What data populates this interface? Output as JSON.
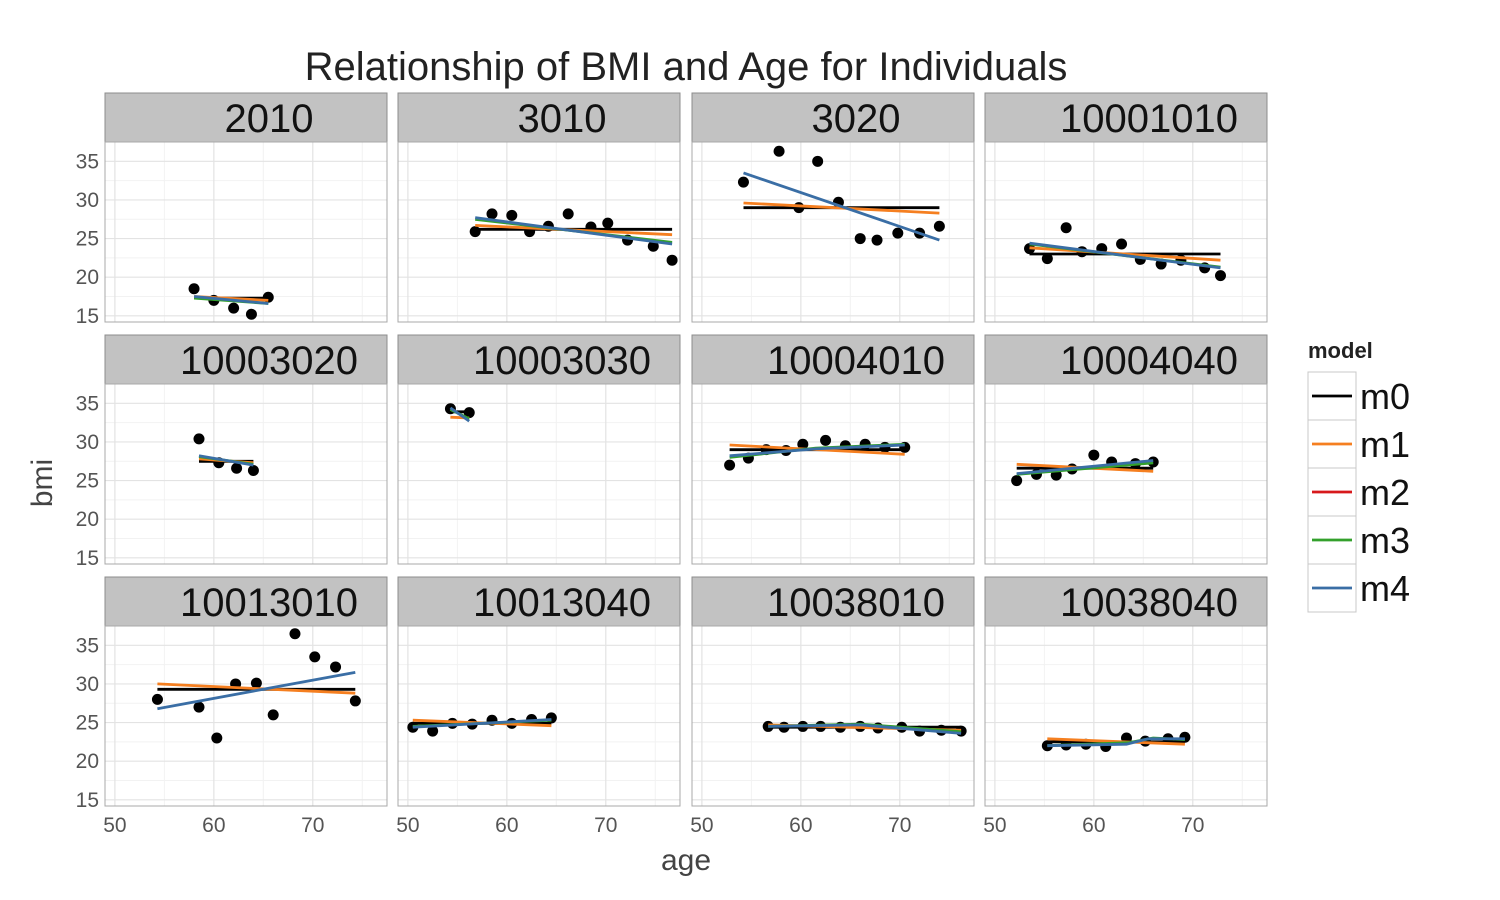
{
  "chart_data": {
    "type": "scatter",
    "title": "Relationship of BMI and Age for Individuals",
    "xlabel": "age",
    "ylabel": "bmi",
    "xlim": [
      49,
      77.5
    ],
    "ylim": [
      14.2,
      37.5
    ],
    "x_ticks": [
      50,
      60,
      70
    ],
    "y_ticks": [
      15,
      20,
      25,
      30,
      35
    ],
    "grid": true,
    "legend": {
      "title": "model",
      "position": "right",
      "entries": [
        {
          "name": "m0",
          "color": "#000000"
        },
        {
          "name": "m1",
          "color": "#F57F20"
        },
        {
          "name": "m2",
          "color": "#D7191C"
        },
        {
          "name": "m3",
          "color": "#33A02C"
        },
        {
          "name": "m4",
          "color": "#3A6EA5"
        }
      ]
    },
    "panels": [
      {
        "id": "2010",
        "points": [
          [
            58,
            18.5
          ],
          [
            60,
            17
          ],
          [
            62,
            16
          ],
          [
            63.8,
            15.2
          ],
          [
            65.5,
            17.4
          ]
        ],
        "lines": {
          "m0": [
            [
              58,
              17.3
            ],
            [
              65.5,
              17.3
            ]
          ],
          "m1": [
            [
              58,
              17.5
            ],
            [
              65.5,
              17.0
            ]
          ],
          "m3": [
            [
              58,
              17.3
            ],
            [
              65.5,
              16.6
            ]
          ],
          "m4": [
            [
              58,
              17.5
            ],
            [
              65.5,
              16.6
            ]
          ]
        }
      },
      {
        "id": "3010",
        "points": [
          [
            56.8,
            25.9
          ],
          [
            58.5,
            28.2
          ],
          [
            60.5,
            28
          ],
          [
            62.3,
            25.9
          ],
          [
            64.2,
            26.6
          ],
          [
            66.2,
            28.2
          ],
          [
            68.5,
            26.5
          ],
          [
            70.2,
            27
          ],
          [
            72.2,
            24.8
          ],
          [
            74.8,
            24
          ],
          [
            76.7,
            22.2
          ]
        ],
        "lines": {
          "m0": [
            [
              56.8,
              26.2
            ],
            [
              76.7,
              26.2
            ]
          ],
          "m1": [
            [
              56.8,
              26.7
            ],
            [
              76.7,
              25.5
            ]
          ],
          "m3": [
            [
              56.8,
              27.5
            ],
            [
              76.7,
              24.5
            ]
          ],
          "m4": [
            [
              56.8,
              27.7
            ],
            [
              76.7,
              24.3
            ]
          ]
        }
      },
      {
        "id": "3020",
        "points": [
          [
            54.2,
            32.3
          ],
          [
            57.8,
            36.3
          ],
          [
            59.8,
            29
          ],
          [
            61.7,
            35
          ],
          [
            63.8,
            29.7
          ],
          [
            66,
            25
          ],
          [
            67.7,
            24.8
          ],
          [
            69.8,
            25.7
          ],
          [
            72,
            25.7
          ],
          [
            74,
            26.6
          ]
        ],
        "lines": {
          "m0": [
            [
              54.2,
              29
            ],
            [
              74,
              29
            ]
          ],
          "m1": [
            [
              54.2,
              29.6
            ],
            [
              74,
              28.3
            ]
          ],
          "m4": [
            [
              54.2,
              33.5
            ],
            [
              74,
              24.8
            ]
          ]
        }
      },
      {
        "id": "10001010",
        "points": [
          [
            53.5,
            23.7
          ],
          [
            55.3,
            22.4
          ],
          [
            57.2,
            26.4
          ],
          [
            58.8,
            23.3
          ],
          [
            60.8,
            23.7
          ],
          [
            62.8,
            24.3
          ],
          [
            64.7,
            22.3
          ],
          [
            66.8,
            21.7
          ],
          [
            68.8,
            22.2
          ],
          [
            71.2,
            21.2
          ],
          [
            72.8,
            20.2
          ]
        ],
        "lines": {
          "m0": [
            [
              53.5,
              23
            ],
            [
              72.8,
              23
            ]
          ],
          "m1": [
            [
              53.5,
              23.8
            ],
            [
              72.8,
              22.2
            ]
          ],
          "m3": [
            [
              53.5,
              24.3
            ],
            [
              72.8,
              21.3
            ]
          ],
          "m4": [
            [
              53.5,
              24.4
            ],
            [
              72.8,
              21.2
            ]
          ]
        }
      },
      {
        "id": "10003020",
        "points": [
          [
            58.5,
            30.4
          ],
          [
            60.5,
            27.3
          ],
          [
            62.3,
            26.6
          ],
          [
            64,
            26.3
          ]
        ],
        "lines": {
          "m0": [
            [
              58.5,
              27.5
            ],
            [
              64,
              27.5
            ]
          ],
          "m1": [
            [
              58.5,
              27.8
            ],
            [
              64,
              27.3
            ]
          ],
          "m3": [
            [
              58.5,
              28.1
            ],
            [
              64,
              27.1
            ]
          ],
          "m4": [
            [
              58.5,
              28.2
            ],
            [
              64,
              27.0
            ]
          ]
        }
      },
      {
        "id": "10003030",
        "points": [
          [
            54.3,
            34.3
          ],
          [
            56.2,
            33.8
          ]
        ],
        "lines": {
          "m0": [
            [
              54.3,
              33.9
            ],
            [
              56.2,
              33.9
            ]
          ],
          "m1": [
            [
              54.3,
              33.2
            ],
            [
              56.2,
              33.1
            ]
          ],
          "m3": [
            [
              54.3,
              34.2
            ],
            [
              56.2,
              33.0
            ]
          ],
          "m4": [
            [
              54.3,
              34.4
            ],
            [
              56.2,
              32.7
            ]
          ]
        }
      },
      {
        "id": "10004010",
        "points": [
          [
            52.8,
            27
          ],
          [
            54.7,
            27.9
          ],
          [
            56.5,
            29
          ],
          [
            58.5,
            28.9
          ],
          [
            60.2,
            29.7
          ],
          [
            62.5,
            30.2
          ],
          [
            64.5,
            29.5
          ],
          [
            66.5,
            29.7
          ],
          [
            68.5,
            29.3
          ],
          [
            70.5,
            29.3
          ]
        ],
        "lines": {
          "m0": [
            [
              52.8,
              29.0
            ],
            [
              70.5,
              29.0
            ]
          ],
          "m1": [
            [
              52.8,
              29.6
            ],
            [
              70.5,
              28.4
            ]
          ],
          "m3": [
            [
              52.8,
              28.0
            ],
            [
              61.5,
              29.2
            ],
            [
              70.5,
              29.7
            ]
          ],
          "m4": [
            [
              52.8,
              28.2
            ],
            [
              61.5,
              29.1
            ],
            [
              70.5,
              29.6
            ]
          ]
        }
      },
      {
        "id": "10004040",
        "points": [
          [
            52.2,
            25
          ],
          [
            54.2,
            25.8
          ],
          [
            56.2,
            25.7
          ],
          [
            57.8,
            26.5
          ],
          [
            60,
            28.3
          ],
          [
            61.8,
            27.4
          ],
          [
            64.2,
            27.2
          ],
          [
            66,
            27.4
          ]
        ],
        "lines": {
          "m0": [
            [
              52.2,
              26.6
            ],
            [
              66,
              26.6
            ]
          ],
          "m1": [
            [
              52.2,
              27.1
            ],
            [
              66,
              26.2
            ]
          ],
          "m3": [
            [
              52.2,
              25.8
            ],
            [
              66,
              27.3
            ]
          ],
          "m4": [
            [
              52.2,
              25.9
            ],
            [
              66,
              27.6
            ]
          ]
        }
      },
      {
        "id": "10013010",
        "points": [
          [
            54.3,
            28
          ],
          [
            58.5,
            27
          ],
          [
            60.3,
            23
          ],
          [
            62.2,
            30
          ],
          [
            64.3,
            30.1
          ],
          [
            66,
            26
          ],
          [
            68.2,
            36.5
          ],
          [
            70.2,
            33.5
          ],
          [
            72.3,
            32.2
          ],
          [
            74.3,
            27.8
          ]
        ],
        "lines": {
          "m0": [
            [
              54.3,
              29.3
            ],
            [
              74.3,
              29.3
            ]
          ],
          "m1": [
            [
              54.3,
              30.0
            ],
            [
              74.3,
              28.8
            ]
          ],
          "m4": [
            [
              54.3,
              26.8
            ],
            [
              74.3,
              31.5
            ]
          ]
        }
      },
      {
        "id": "10013040",
        "points": [
          [
            50.5,
            24.4
          ],
          [
            52.5,
            23.9
          ],
          [
            54.5,
            24.9
          ],
          [
            56.5,
            24.8
          ],
          [
            58.5,
            25.3
          ],
          [
            60.5,
            24.9
          ],
          [
            62.5,
            25.4
          ],
          [
            64.5,
            25.6
          ]
        ],
        "lines": {
          "m0": [
            [
              50.5,
              24.9
            ],
            [
              64.5,
              24.9
            ]
          ],
          "m1": [
            [
              50.5,
              25.3
            ],
            [
              64.5,
              24.6
            ]
          ],
          "m3": [
            [
              50.5,
              24.5
            ],
            [
              64.5,
              25.3
            ]
          ],
          "m4": [
            [
              50.5,
              24.4
            ],
            [
              64.5,
              25.4
            ]
          ]
        }
      },
      {
        "id": "10038010",
        "points": [
          [
            56.7,
            24.5
          ],
          [
            58.3,
            24.4
          ],
          [
            60.2,
            24.5
          ],
          [
            62,
            24.5
          ],
          [
            64,
            24.4
          ],
          [
            66,
            24.5
          ],
          [
            67.8,
            24.3
          ],
          [
            70.2,
            24.4
          ],
          [
            72,
            23.9
          ],
          [
            74.2,
            24
          ],
          [
            76.2,
            23.9
          ]
        ],
        "lines": {
          "m0": [
            [
              56.7,
              24.4
            ],
            [
              76.2,
              24.4
            ]
          ],
          "m1": [
            [
              56.7,
              24.7
            ],
            [
              76.2,
              24.0
            ]
          ],
          "m3": [
            [
              56.7,
              24.5
            ],
            [
              66,
              24.8
            ],
            [
              76.2,
              23.8
            ]
          ],
          "m4": [
            [
              56.7,
              24.5
            ],
            [
              66,
              24.7
            ],
            [
              76.2,
              23.6
            ]
          ]
        }
      },
      {
        "id": "10038040",
        "points": [
          [
            55.3,
            22
          ],
          [
            57.2,
            22.1
          ],
          [
            59.2,
            22.2
          ],
          [
            61.2,
            21.9
          ],
          [
            63.3,
            23
          ],
          [
            65.2,
            22.6
          ],
          [
            67.5,
            22.9
          ],
          [
            69.2,
            23.1
          ]
        ],
        "lines": {
          "m0": [
            [
              55.3,
              22.5
            ],
            [
              69.2,
              22.5
            ]
          ],
          "m1": [
            [
              55.3,
              22.9
            ],
            [
              69.2,
              22.2
            ]
          ],
          "m3": [
            [
              55.3,
              22.0
            ],
            [
              63.5,
              22.4
            ],
            [
              66,
              23.0
            ],
            [
              69.2,
              22.8
            ]
          ],
          "m4": [
            [
              55.3,
              22.0
            ],
            [
              63.3,
              22.2
            ],
            [
              65.5,
              22.9
            ],
            [
              69.2,
              22.9
            ]
          ]
        }
      }
    ]
  }
}
